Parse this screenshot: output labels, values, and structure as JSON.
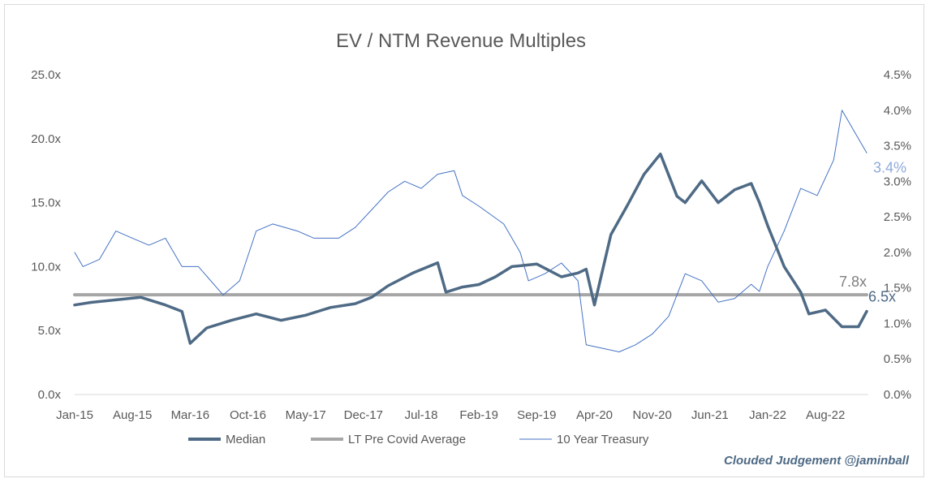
{
  "chart_data": {
    "type": "line",
    "title": "EV / NTM Revenue Multiples",
    "x_ticks": [
      "Jan-15",
      "Aug-15",
      "Mar-16",
      "Oct-16",
      "May-17",
      "Dec-17",
      "Jul-18",
      "Feb-19",
      "Sep-19",
      "Apr-20",
      "Nov-20",
      "Jun-21",
      "Jan-22",
      "Aug-22"
    ],
    "y_left": {
      "ticks": [
        "0.0x",
        "5.0x",
        "10.0x",
        "15.0x",
        "20.0x",
        "25.0x"
      ],
      "ylim": [
        0,
        25
      ]
    },
    "y_right": {
      "ticks": [
        "0.0%",
        "0.5%",
        "1.0%",
        "1.5%",
        "2.0%",
        "2.5%",
        "3.0%",
        "3.5%",
        "4.0%",
        "4.5%"
      ],
      "ylim": [
        0,
        4.5
      ]
    },
    "grid": false,
    "legend_position": "bottom",
    "series": [
      {
        "name": "Median",
        "axis": "left",
        "color": "#4e6a85",
        "end_label": "6.5x",
        "x": [
          "2015-01",
          "2015-03",
          "2015-06",
          "2015-09",
          "2015-12",
          "2016-02",
          "2016-03",
          "2016-05",
          "2016-08",
          "2016-11",
          "2017-02",
          "2017-05",
          "2017-08",
          "2017-11",
          "2018-01",
          "2018-03",
          "2018-06",
          "2018-09",
          "2018-10",
          "2018-12",
          "2019-02",
          "2019-04",
          "2019-06",
          "2019-09",
          "2019-12",
          "2020-02",
          "2020-03",
          "2020-04",
          "2020-06",
          "2020-08",
          "2020-10",
          "2020-12",
          "2021-02",
          "2021-03",
          "2021-05",
          "2021-07",
          "2021-09",
          "2021-11",
          "2021-12",
          "2022-01",
          "2022-03",
          "2022-05",
          "2022-06",
          "2022-08",
          "2022-10",
          "2022-12",
          "2023-01"
        ],
        "values": [
          7.0,
          7.2,
          7.4,
          7.6,
          7.0,
          6.5,
          4.0,
          5.2,
          5.8,
          6.3,
          5.8,
          6.2,
          6.8,
          7.1,
          7.6,
          8.5,
          9.5,
          10.3,
          8.0,
          8.4,
          8.6,
          9.2,
          10.0,
          10.2,
          9.2,
          9.5,
          9.8,
          7.0,
          12.5,
          14.8,
          17.2,
          18.8,
          15.5,
          15.0,
          16.7,
          15.0,
          16.0,
          16.5,
          15.0,
          13.2,
          10.0,
          8.0,
          6.3,
          6.6,
          5.3,
          5.3,
          6.5
        ]
      },
      {
        "name": "LT Pre Covid Average",
        "axis": "left",
        "color": "#a6a6a6",
        "end_label": "7.8x",
        "x": [
          "2015-01",
          "2023-01"
        ],
        "values": [
          7.8,
          7.8
        ]
      },
      {
        "name": "10 Year Treasury",
        "axis": "right",
        "color": "#4472c4",
        "end_label": "3.4%",
        "x": [
          "2015-01",
          "2015-02",
          "2015-04",
          "2015-06",
          "2015-08",
          "2015-10",
          "2015-12",
          "2016-02",
          "2016-04",
          "2016-07",
          "2016-09",
          "2016-11",
          "2017-01",
          "2017-04",
          "2017-06",
          "2017-09",
          "2017-11",
          "2018-01",
          "2018-03",
          "2018-05",
          "2018-07",
          "2018-09",
          "2018-11",
          "2018-12",
          "2019-02",
          "2019-05",
          "2019-07",
          "2019-08",
          "2019-10",
          "2019-12",
          "2020-02",
          "2020-03",
          "2020-05",
          "2020-07",
          "2020-09",
          "2020-11",
          "2021-01",
          "2021-03",
          "2021-05",
          "2021-07",
          "2021-09",
          "2021-11",
          "2021-12",
          "2022-01",
          "2022-03",
          "2022-05",
          "2022-07",
          "2022-09",
          "2022-10",
          "2022-11",
          "2022-12",
          "2023-01"
        ],
        "values": [
          2.0,
          1.8,
          1.9,
          2.3,
          2.2,
          2.1,
          2.2,
          1.8,
          1.8,
          1.4,
          1.6,
          2.3,
          2.4,
          2.3,
          2.2,
          2.2,
          2.35,
          2.6,
          2.85,
          3.0,
          2.9,
          3.1,
          3.15,
          2.8,
          2.65,
          2.4,
          2.0,
          1.6,
          1.7,
          1.85,
          1.6,
          0.7,
          0.65,
          0.6,
          0.7,
          0.85,
          1.1,
          1.7,
          1.6,
          1.3,
          1.35,
          1.55,
          1.45,
          1.8,
          2.3,
          2.9,
          2.8,
          3.3,
          4.0,
          3.8,
          3.6,
          3.4
        ]
      }
    ]
  },
  "watermark": "Clouded Judgement @jaminball"
}
